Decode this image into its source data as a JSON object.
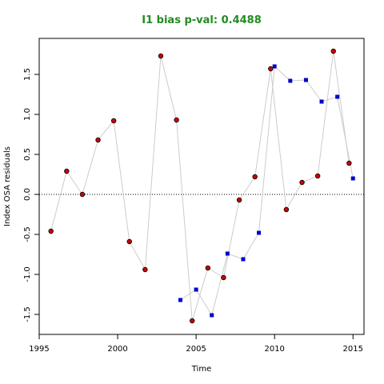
{
  "chart_data": {
    "type": "scatter",
    "title": "I1 bias p-val: 0.4488",
    "title_color": "#228b22",
    "xlabel": "Time",
    "ylabel": "Index OSA residuals",
    "xlim": [
      1995,
      2015.7
    ],
    "ylim": [
      -1.75,
      1.95
    ],
    "xticks": [
      "1995",
      "2000",
      "2005",
      "2010",
      "2015"
    ],
    "yticks": [
      "-1.5",
      "-1.0",
      "-0.5",
      "0.0",
      "0.5",
      "1.0",
      "1.5"
    ],
    "reference_line": 0,
    "line_color": "#cccccc",
    "grid": false,
    "series": [
      {
        "marker": "circle",
        "color": "#cc0000",
        "x": [
          1995.75,
          1996.75,
          1997.75,
          1998.75,
          1999.75,
          2000.75,
          2001.75,
          2002.75,
          2003.75,
          2004.75,
          2005.75,
          2006.75,
          2007.75,
          2008.75,
          2009.75,
          2010.75,
          2011.75,
          2012.75,
          2013.75,
          2014.75
        ],
        "y": [
          -0.46,
          0.29,
          0.0,
          0.68,
          0.92,
          -0.59,
          -0.94,
          1.73,
          0.93,
          -1.58,
          -0.92,
          -1.04,
          -0.07,
          0.22,
          1.57,
          -0.19,
          0.15,
          0.23,
          1.79,
          0.39
        ]
      },
      {
        "marker": "square",
        "color": "#0000cc",
        "x": [
          2004,
          2005,
          2006,
          2007,
          2008,
          2009,
          2010,
          2011,
          2012,
          2013,
          2014,
          2015
        ],
        "y": [
          -1.32,
          -1.19,
          -1.51,
          -0.74,
          -0.81,
          -0.48,
          1.6,
          1.42,
          1.43,
          1.16,
          1.22,
          0.2
        ]
      }
    ]
  }
}
